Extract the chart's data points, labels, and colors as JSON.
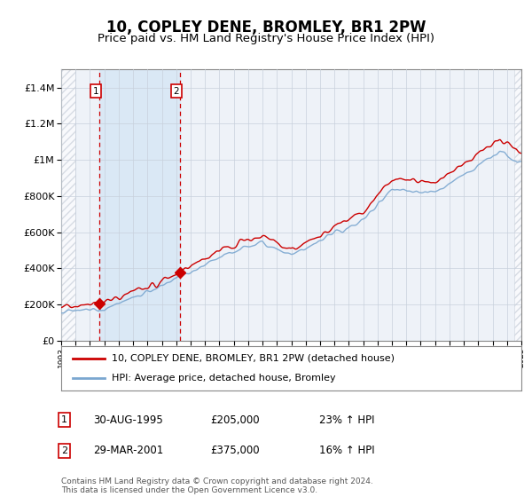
{
  "title": "10, COPLEY DENE, BROMLEY, BR1 2PW",
  "subtitle": "Price paid vs. HM Land Registry's House Price Index (HPI)",
  "title_fontsize": 12,
  "subtitle_fontsize": 9.5,
  "ylim": [
    0,
    1500000
  ],
  "yticks": [
    0,
    200000,
    400000,
    600000,
    800000,
    1000000,
    1200000,
    1400000
  ],
  "ytick_labels": [
    "£0",
    "£200K",
    "£400K",
    "£600K",
    "£800K",
    "£1M",
    "£1.2M",
    "£1.4M"
  ],
  "background_color": "#ffffff",
  "plot_bg_color": "#eef2f8",
  "purchase1_date": 1995.67,
  "purchase1_price": 205000,
  "purchase2_date": 2001.25,
  "purchase2_price": 375000,
  "legend1": "10, COPLEY DENE, BROMLEY, BR1 2PW (detached house)",
  "legend2": "HPI: Average price, detached house, Bromley",
  "footer": "Contains HM Land Registry data © Crown copyright and database right 2024.\nThis data is licensed under the Open Government Licence v3.0.",
  "red_line_color": "#cc0000",
  "blue_line_color": "#7ba7d0",
  "marker_color": "#cc0000",
  "dashed_vline_color": "#cc0000",
  "highlight_bg": "#dae8f5",
  "grid_color": "#c8d0dc",
  "hatch_color": "#c0c8d4"
}
